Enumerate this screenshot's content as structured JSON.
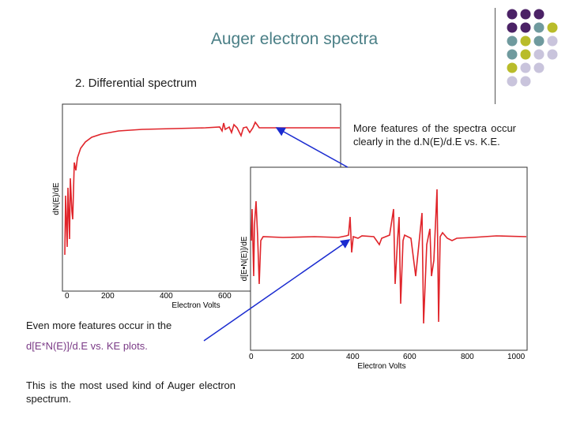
{
  "slide": {
    "title": "Auger electron spectra",
    "subtitle": "2. Differential spectrum",
    "note_top": "More features of the spectra occur clearly in the d.N(E)/d.E vs. K.E.",
    "note_mid_line1": "Even more features occur in the",
    "note_mid_line2": "d[E*N(E)]/d.E vs. KE plots.",
    "note_bottom": "This is the most used kind of Auger electron spectrum."
  },
  "colors": {
    "title": "#4a7f86",
    "trace": "#e0242a",
    "arrow": "#1a2bd0",
    "purple": "#4b2266",
    "teal": "#6f9a9e",
    "olive": "#b9bc2a",
    "lavender": "#c9c4dc"
  },
  "decor": {
    "dot_grid": [
      [
        "purple",
        "purple",
        "purple",
        "none"
      ],
      [
        "purple",
        "purple",
        "teal",
        "olive"
      ],
      [
        "teal",
        "olive",
        "teal",
        "lavender"
      ],
      [
        "teal",
        "olive",
        "lavender",
        "lavender"
      ],
      [
        "olive",
        "lavender",
        "lavender",
        "none"
      ],
      [
        "lavender",
        "lavender",
        "none",
        "none"
      ]
    ]
  },
  "chart_data": [
    {
      "type": "line",
      "xlabel": "Electron Volts",
      "ylabel": "dN(E)/dE",
      "xticks": [
        "0",
        "200",
        "400",
        "600"
      ],
      "xlim": [
        0,
        1000
      ]
    },
    {
      "type": "line",
      "xlabel": "Electron Volts",
      "ylabel": "d[E•N(E)]/dE",
      "xticks": [
        "0",
        "200",
        "400",
        "600",
        "800",
        "1000"
      ],
      "xlim": [
        0,
        1000
      ]
    }
  ]
}
